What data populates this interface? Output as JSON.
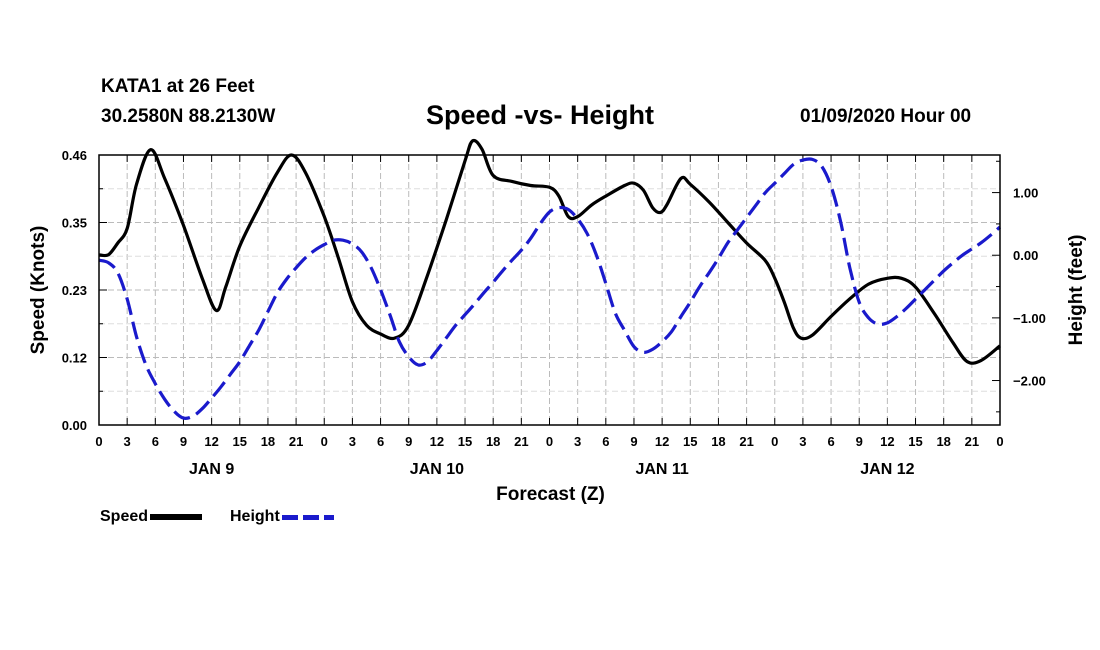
{
  "header": {
    "station": "KATA1 at 26 Feet",
    "coords": "30.2580N 88.2130W",
    "title": "Speed -vs- Height",
    "run": "01/09/2020 Hour 00"
  },
  "colors": {
    "speed": "#000000",
    "height": "#1a1acc",
    "grid": "#bbbbbb"
  },
  "chart_data": {
    "type": "line",
    "title": "Speed -vs- Height",
    "xlabel": "Forecast (Z)",
    "ylabel_left": "Speed (Knots)",
    "ylabel_right": "Height (feet)",
    "x_unit": "hours from 01/09/2020 00Z",
    "xlim": [
      0,
      96
    ],
    "ylim_left": [
      0.0,
      0.46
    ],
    "ylim_right": [
      -2.71,
      1.6
    ],
    "grid": true,
    "x_tick_labels": [
      "0",
      "3",
      "6",
      "9",
      "12",
      "15",
      "18",
      "21",
      "0",
      "3",
      "6",
      "9",
      "12",
      "15",
      "18",
      "21",
      "0",
      "3",
      "6",
      "9",
      "12",
      "15",
      "18",
      "21",
      "0",
      "3",
      "6",
      "9",
      "12",
      "15",
      "18",
      "21",
      "0"
    ],
    "day_labels": [
      {
        "label": "JAN 9",
        "hour": 12
      },
      {
        "label": "JAN 10",
        "hour": 36
      },
      {
        "label": "JAN 11",
        "hour": 60
      },
      {
        "label": "JAN 12",
        "hour": 84
      }
    ],
    "y_left_ticks": [
      {
        "value": 0.0,
        "label": "0.00"
      },
      {
        "value": 0.115,
        "label": "0.12"
      },
      {
        "value": 0.23,
        "label": "0.23"
      },
      {
        "value": 0.345,
        "label": "0.35"
      },
      {
        "value": 0.46,
        "label": "0.46"
      }
    ],
    "y_right_ticks": [
      {
        "value": 1.0,
        "label": "1.00"
      },
      {
        "value": 0.0,
        "label": "0.00"
      },
      {
        "value": -1.0,
        "label": "−1.00"
      },
      {
        "value": -2.0,
        "label": "−2.00"
      }
    ],
    "series": [
      {
        "name": "Speed",
        "axis": "left",
        "style": "solid",
        "points": [
          [
            0,
            0.29
          ],
          [
            1,
            0.29
          ],
          [
            2,
            0.31
          ],
          [
            3,
            0.335
          ],
          [
            4,
            0.41
          ],
          [
            5.5,
            0.469
          ],
          [
            7,
            0.42
          ],
          [
            9,
            0.34
          ],
          [
            11,
            0.25
          ],
          [
            12.5,
            0.195
          ],
          [
            13.5,
            0.235
          ],
          [
            15,
            0.305
          ],
          [
            17,
            0.37
          ],
          [
            19,
            0.43
          ],
          [
            20.5,
            0.46
          ],
          [
            22,
            0.43
          ],
          [
            24,
            0.355
          ],
          [
            25.5,
            0.285
          ],
          [
            27,
            0.21
          ],
          [
            28.5,
            0.17
          ],
          [
            30,
            0.155
          ],
          [
            31.5,
            0.148
          ],
          [
            33,
            0.17
          ],
          [
            35,
            0.255
          ],
          [
            37,
            0.35
          ],
          [
            39,
            0.45
          ],
          [
            39.8,
            0.484
          ],
          [
            40.8,
            0.47
          ],
          [
            42,
            0.425
          ],
          [
            44,
            0.415
          ],
          [
            46,
            0.408
          ],
          [
            48,
            0.405
          ],
          [
            49,
            0.39
          ],
          [
            50,
            0.355
          ],
          [
            51,
            0.355
          ],
          [
            52.5,
            0.375
          ],
          [
            54,
            0.39
          ],
          [
            56,
            0.408
          ],
          [
            57,
            0.412
          ],
          [
            58,
            0.4
          ],
          [
            59,
            0.37
          ],
          [
            59.8,
            0.362
          ],
          [
            60.5,
            0.375
          ],
          [
            62,
            0.42
          ],
          [
            63,
            0.41
          ],
          [
            65,
            0.38
          ],
          [
            67,
            0.345
          ],
          [
            69,
            0.31
          ],
          [
            71,
            0.28
          ],
          [
            72,
            0.25
          ],
          [
            73,
            0.21
          ],
          [
            74,
            0.165
          ],
          [
            74.8,
            0.148
          ],
          [
            76,
            0.153
          ],
          [
            78,
            0.185
          ],
          [
            80,
            0.215
          ],
          [
            82,
            0.24
          ],
          [
            84,
            0.25
          ],
          [
            85.5,
            0.25
          ],
          [
            87,
            0.235
          ],
          [
            89,
            0.19
          ],
          [
            91,
            0.14
          ],
          [
            92.5,
            0.108
          ],
          [
            94,
            0.11
          ],
          [
            96,
            0.135
          ]
        ]
      },
      {
        "name": "Height",
        "axis": "right",
        "style": "dashed",
        "points": [
          [
            0,
            -0.08
          ],
          [
            1,
            -0.12
          ],
          [
            2,
            -0.28
          ],
          [
            3,
            -0.7
          ],
          [
            4,
            -1.3
          ],
          [
            5,
            -1.75
          ],
          [
            6,
            -2.05
          ],
          [
            7,
            -2.3
          ],
          [
            8,
            -2.49
          ],
          [
            9,
            -2.6
          ],
          [
            10,
            -2.57
          ],
          [
            11,
            -2.45
          ],
          [
            12,
            -2.28
          ],
          [
            13,
            -2.1
          ],
          [
            14,
            -1.9
          ],
          [
            15,
            -1.7
          ],
          [
            16,
            -1.45
          ],
          [
            17,
            -1.2
          ],
          [
            18,
            -0.9
          ],
          [
            19,
            -0.6
          ],
          [
            20,
            -0.38
          ],
          [
            21,
            -0.2
          ],
          [
            22,
            -0.04
          ],
          [
            23,
            0.08
          ],
          [
            24,
            0.17
          ],
          [
            25,
            0.24
          ],
          [
            26,
            0.24
          ],
          [
            27,
            0.18
          ],
          [
            28,
            0.05
          ],
          [
            29,
            -0.2
          ],
          [
            30,
            -0.55
          ],
          [
            31,
            -0.95
          ],
          [
            32,
            -1.38
          ],
          [
            33,
            -1.62
          ],
          [
            34,
            -1.75
          ],
          [
            35,
            -1.7
          ],
          [
            36,
            -1.52
          ],
          [
            37,
            -1.32
          ],
          [
            38,
            -1.12
          ],
          [
            39,
            -0.95
          ],
          [
            40,
            -0.78
          ],
          [
            41,
            -0.6
          ],
          [
            42,
            -0.43
          ],
          [
            43,
            -0.25
          ],
          [
            44,
            -0.08
          ],
          [
            45,
            0.08
          ],
          [
            46,
            0.27
          ],
          [
            47,
            0.5
          ],
          [
            48,
            0.69
          ],
          [
            49,
            0.76
          ],
          [
            50,
            0.73
          ],
          [
            51,
            0.58
          ],
          [
            52,
            0.35
          ],
          [
            53,
            0.0
          ],
          [
            54,
            -0.45
          ],
          [
            55,
            -0.92
          ],
          [
            56,
            -1.2
          ],
          [
            57,
            -1.46
          ],
          [
            58,
            -1.55
          ],
          [
            59,
            -1.5
          ],
          [
            60,
            -1.38
          ],
          [
            61,
            -1.22
          ],
          [
            62,
            -0.98
          ],
          [
            63,
            -0.75
          ],
          [
            64,
            -0.5
          ],
          [
            65,
            -0.28
          ],
          [
            66,
            -0.05
          ],
          [
            67,
            0.2
          ],
          [
            68,
            0.4
          ],
          [
            69,
            0.6
          ],
          [
            70,
            0.8
          ],
          [
            71,
            1.0
          ],
          [
            72,
            1.15
          ],
          [
            73,
            1.3
          ],
          [
            74,
            1.45
          ],
          [
            75,
            1.52
          ],
          [
            76,
            1.53
          ],
          [
            77,
            1.42
          ],
          [
            78,
            1.1
          ],
          [
            79,
            0.55
          ],
          [
            80,
            -0.2
          ],
          [
            81,
            -0.75
          ],
          [
            82,
            -1.0
          ],
          [
            83,
            -1.1
          ],
          [
            84,
            -1.08
          ],
          [
            85,
            -0.98
          ],
          [
            86,
            -0.85
          ],
          [
            87,
            -0.7
          ],
          [
            88,
            -0.55
          ],
          [
            89,
            -0.4
          ],
          [
            90,
            -0.25
          ],
          [
            91,
            -0.12
          ],
          [
            92,
            0.0
          ],
          [
            93,
            0.1
          ],
          [
            94,
            0.2
          ],
          [
            95,
            0.32
          ],
          [
            96,
            0.45
          ]
        ]
      }
    ],
    "legend": [
      {
        "label": "Speed",
        "style": "solid"
      },
      {
        "label": "Height",
        "style": "dashed"
      }
    ],
    "legend_position": "bottom-left"
  }
}
